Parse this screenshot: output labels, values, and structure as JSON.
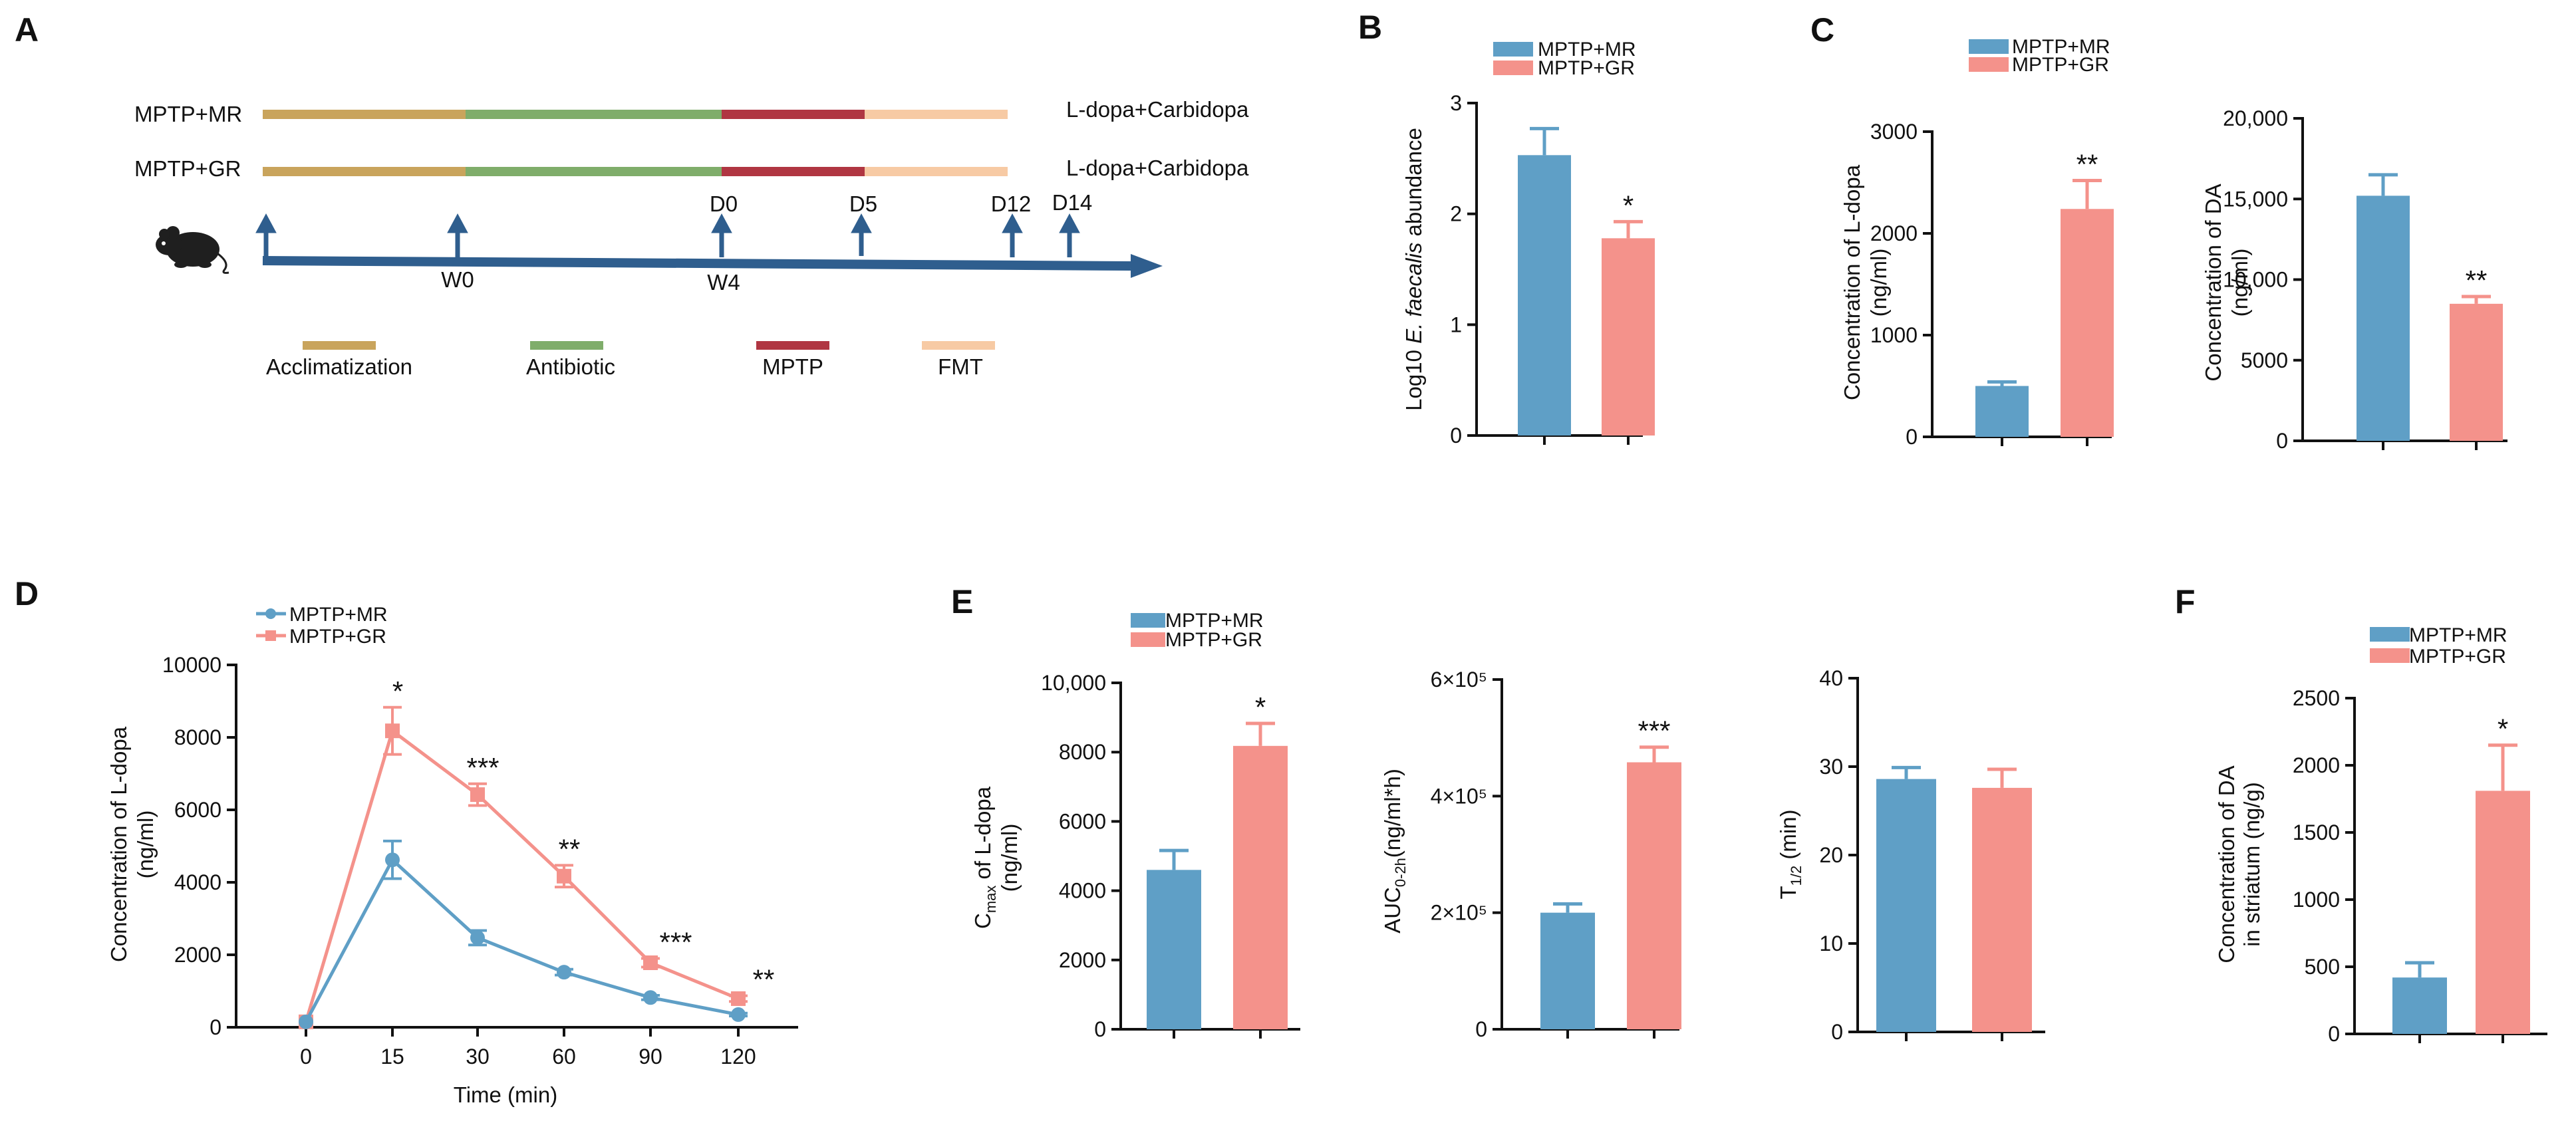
{
  "colors": {
    "mr": "#5f9fc6",
    "gr": "#f4928b",
    "acclimatization": "#c9a45c",
    "antibiotic": "#7fad6a",
    "mptp": "#b03642",
    "fmt": "#f7caa4",
    "arrow": "#2f5e8e",
    "axis": "#111111"
  },
  "panel_labels": {
    "A": "A",
    "B": "B",
    "C": "C",
    "D": "D",
    "E": "E",
    "F": "F"
  },
  "legend": {
    "mr": "MPTP+MR",
    "gr": "MPTP+GR"
  },
  "schematic": {
    "group_mr": "MPTP+MR",
    "group_gr": "MPTP+GR",
    "treatment_mr": "L-dopa+Carbidopa",
    "treatment_gr": "L-dopa+Carbidopa",
    "timepoints_below": [
      "W0",
      "W4"
    ],
    "timepoints_above": [
      "D0",
      "D5",
      "D12",
      "D14"
    ],
    "phases": [
      "Acclimatization",
      "Antibiotic",
      "MPTP",
      "FMT"
    ],
    "mouse_icon": "mouse-icon"
  },
  "chart_data": [
    {
      "id": "B",
      "type": "bar",
      "categories": [
        "MPTP+MR",
        "MPTP+GR"
      ],
      "values": [
        2.53,
        1.78
      ],
      "errors": [
        0.24,
        0.15
      ],
      "significance": [
        "",
        "*"
      ],
      "ylabel_prefix": "Log10 ",
      "ylabel_italic": "E. faecalis",
      "ylabel_suffix": " abundance",
      "ylim": [
        0,
        3
      ],
      "yticks": [
        0,
        1,
        2,
        3
      ],
      "ytick_labels": [
        "0",
        "1",
        "2",
        "3"
      ]
    },
    {
      "id": "C1",
      "type": "bar",
      "categories": [
        "MPTP+MR",
        "MPTP+GR"
      ],
      "values": [
        500,
        2240
      ],
      "errors": [
        40,
        280
      ],
      "significance": [
        "",
        "**"
      ],
      "ylabel": "Concentration of L-dopa",
      "ylabel2": "(ng/ml)",
      "ylim": [
        0,
        3000
      ],
      "yticks": [
        0,
        1000,
        2000,
        3000
      ],
      "ytick_labels": [
        "0",
        "1000",
        "2000",
        "3000"
      ]
    },
    {
      "id": "C2",
      "type": "bar",
      "categories": [
        "MPTP+MR",
        "MPTP+GR"
      ],
      "values": [
        15200,
        8500
      ],
      "errors": [
        1300,
        450
      ],
      "significance": [
        "",
        "**"
      ],
      "ylabel": "Concentration of DA",
      "ylabel2": "(ng/ml)",
      "ylim": [
        0,
        20000
      ],
      "yticks": [
        0,
        5000,
        10000,
        15000,
        20000
      ],
      "ytick_labels": [
        "0",
        "5000",
        "10,000",
        "15,000",
        "20,000"
      ]
    },
    {
      "id": "D",
      "type": "line",
      "categories": [
        "0",
        "15",
        "30",
        "60",
        "90",
        "120"
      ],
      "xlabel": "Time (min)",
      "ylabel": "Concentration of L-dopa",
      "ylabel2": "(ng/ml)",
      "ylim": [
        0,
        10000
      ],
      "yticks": [
        0,
        2000,
        4000,
        6000,
        8000,
        10000
      ],
      "ytick_labels": [
        "0",
        "2000",
        "4000",
        "6000",
        "8000",
        "10000"
      ],
      "series": [
        {
          "name": "MPTP+MR",
          "values": [
            150,
            4620,
            2470,
            1520,
            820,
            350
          ],
          "errors": [
            0,
            520,
            200,
            80,
            60,
            40
          ],
          "marker": "circle"
        },
        {
          "name": "MPTP+GR",
          "values": [
            150,
            8180,
            6420,
            4170,
            1780,
            790
          ],
          "errors": [
            0,
            650,
            300,
            300,
            120,
            80
          ],
          "marker": "square"
        }
      ],
      "significance": [
        "",
        "*",
        "***",
        "**",
        "***",
        "**"
      ]
    },
    {
      "id": "E1",
      "type": "bar",
      "categories": [
        "MPTP+MR",
        "MPTP+GR"
      ],
      "values": [
        4600,
        8180
      ],
      "errors": [
        560,
        650
      ],
      "significance": [
        "",
        "*"
      ],
      "ylabel_C": "C",
      "ylabel_sub": "max",
      "ylabel_rest": " of L-dopa",
      "ylabel2": "(ng/ml)",
      "ylim": [
        0,
        10000
      ],
      "yticks": [
        0,
        2000,
        4000,
        6000,
        8000,
        10000
      ],
      "ytick_labels": [
        "0",
        "2000",
        "4000",
        "6000",
        "8000",
        "10,000"
      ]
    },
    {
      "id": "E2",
      "type": "bar",
      "categories": [
        "MPTP+MR",
        "MPTP+GR"
      ],
      "values": [
        200000,
        458000
      ],
      "errors": [
        15000,
        26000
      ],
      "significance": [
        "",
        "***"
      ],
      "ylabel_main": "AUC",
      "ylabel_sub": "0-2h",
      "ylabel_rest": "(ng/ml*h)",
      "ylim": [
        0,
        600000
      ],
      "yticks": [
        0,
        200000,
        400000,
        600000
      ],
      "ytick_labels": [
        "0",
        "2×10⁵",
        "4×10⁵",
        "6×10⁵"
      ]
    },
    {
      "id": "E3",
      "type": "bar",
      "categories": [
        "MPTP+MR",
        "MPTP+GR"
      ],
      "values": [
        28.6,
        27.6
      ],
      "errors": [
        1.3,
        2.1
      ],
      "significance": [
        "",
        ""
      ],
      "ylabel_main": "T",
      "ylabel_sub": "1/2",
      "ylabel_rest": " (min)",
      "ylim": [
        0,
        40
      ],
      "yticks": [
        0,
        10,
        20,
        30,
        40
      ],
      "ytick_labels": [
        "0",
        "10",
        "20",
        "30",
        "40"
      ]
    },
    {
      "id": "F",
      "type": "bar",
      "categories": [
        "MPTP+MR",
        "MPTP+GR"
      ],
      "values": [
        420,
        1810
      ],
      "errors": [
        110,
        340
      ],
      "significance": [
        "",
        "*"
      ],
      "ylabel": "Concentration of DA",
      "ylabel2": "in striatum (ng/g)",
      "ylim": [
        0,
        2500
      ],
      "yticks": [
        0,
        500,
        1000,
        1500,
        2000,
        2500
      ],
      "ytick_labels": [
        "0",
        "500",
        "1000",
        "1500",
        "2000",
        "2500"
      ]
    }
  ]
}
